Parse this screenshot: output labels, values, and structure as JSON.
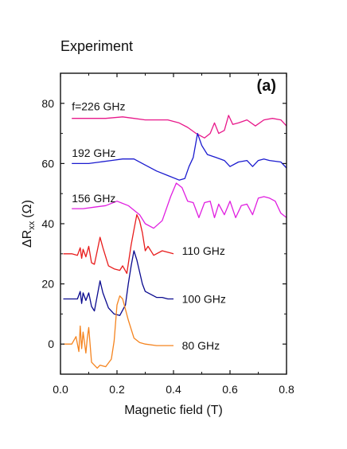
{
  "header": {
    "title": "Experiment"
  },
  "chart_data": {
    "type": "line",
    "panel_label": "(a)",
    "xlabel": "Magnetic field (T)",
    "ylabel_main": "ΔR",
    "ylabel_sub": "xx",
    "ylabel_unit": "(Ω)",
    "xlim": [
      0.0,
      0.8
    ],
    "ylim": [
      -10,
      90
    ],
    "xticks": [
      "0.0",
      "0.2",
      "0.4",
      "0.6",
      "0.8"
    ],
    "yticks": [
      "0",
      "20",
      "40",
      "60",
      "80"
    ],
    "grid": false,
    "legend": "none",
    "series": [
      {
        "name": "f=226 GHz",
        "color": "#e8188a",
        "x": [
          0.04,
          0.1,
          0.16,
          0.22,
          0.26,
          0.3,
          0.34,
          0.38,
          0.42,
          0.45,
          0.48,
          0.51,
          0.53,
          0.545,
          0.56,
          0.58,
          0.595,
          0.61,
          0.63,
          0.66,
          0.69,
          0.72,
          0.75,
          0.78,
          0.8
        ],
        "values": [
          75,
          75,
          75,
          75.5,
          75,
          74.5,
          74.5,
          74.5,
          73.5,
          72,
          70,
          68.5,
          70,
          73.5,
          70,
          71,
          76,
          73,
          73.5,
          74.5,
          72.5,
          74.5,
          75,
          74.5,
          72.5
        ]
      },
      {
        "name": "192 GHz",
        "color": "#1b1bcf",
        "x": [
          0.04,
          0.1,
          0.14,
          0.18,
          0.22,
          0.26,
          0.3,
          0.34,
          0.38,
          0.42,
          0.44,
          0.455,
          0.47,
          0.485,
          0.5,
          0.52,
          0.55,
          0.58,
          0.6,
          0.63,
          0.66,
          0.68,
          0.7,
          0.72,
          0.74,
          0.78,
          0.8
        ],
        "values": [
          60,
          60,
          60.5,
          61,
          61.5,
          61.5,
          59.5,
          57.5,
          56,
          54.5,
          55,
          59,
          62,
          70,
          66,
          63,
          62,
          61,
          59,
          60.5,
          61,
          59,
          61,
          61.5,
          61,
          60.5,
          58.5
        ]
      },
      {
        "name": "156 GHz",
        "color": "#e01ee0",
        "x": [
          0.04,
          0.08,
          0.12,
          0.16,
          0.2,
          0.24,
          0.28,
          0.3,
          0.33,
          0.36,
          0.39,
          0.41,
          0.43,
          0.45,
          0.47,
          0.49,
          0.51,
          0.53,
          0.545,
          0.56,
          0.58,
          0.6,
          0.62,
          0.64,
          0.66,
          0.68,
          0.7,
          0.72,
          0.74,
          0.76,
          0.78,
          0.8
        ],
        "values": [
          45,
          45,
          45.5,
          46,
          47.5,
          46,
          43,
          40,
          38.5,
          41,
          49,
          53.5,
          52,
          47.5,
          47,
          42,
          47,
          47.5,
          42,
          46.5,
          43,
          47.5,
          42,
          46,
          46.5,
          43,
          48.5,
          49,
          48.5,
          47.5,
          43.5,
          42
        ]
      },
      {
        "name": "110 GHz",
        "color": "#e81c1c",
        "x": [
          0.01,
          0.04,
          0.06,
          0.07,
          0.075,
          0.08,
          0.09,
          0.1,
          0.11,
          0.12,
          0.13,
          0.14,
          0.15,
          0.17,
          0.19,
          0.21,
          0.22,
          0.235,
          0.25,
          0.26,
          0.27,
          0.28,
          0.29,
          0.3,
          0.31,
          0.33,
          0.36,
          0.38,
          0.4
        ],
        "values": [
          30,
          30,
          29.5,
          32,
          28.5,
          31.5,
          29,
          32.5,
          27,
          26.5,
          31,
          35.5,
          32,
          26,
          25,
          24.5,
          26,
          23.5,
          33,
          38,
          43,
          41,
          37,
          31,
          32.5,
          29.5,
          31,
          30.5,
          30
        ]
      },
      {
        "name": "100 GHz",
        "color": "#0a0a8f",
        "x": [
          0.01,
          0.04,
          0.06,
          0.07,
          0.075,
          0.08,
          0.09,
          0.1,
          0.11,
          0.12,
          0.14,
          0.15,
          0.17,
          0.19,
          0.21,
          0.23,
          0.24,
          0.25,
          0.26,
          0.27,
          0.28,
          0.29,
          0.3,
          0.32,
          0.34,
          0.36,
          0.38,
          0.4
        ],
        "values": [
          15,
          15,
          15,
          17.5,
          13.5,
          17,
          14.5,
          17,
          12.5,
          11,
          21,
          17,
          12,
          10,
          9.5,
          13,
          20,
          26,
          31,
          28,
          24,
          20,
          17.5,
          16.5,
          15.5,
          15.5,
          15,
          15
        ]
      },
      {
        "name": "80 GHz",
        "color": "#f5841f",
        "x": [
          0.01,
          0.04,
          0.055,
          0.065,
          0.07,
          0.075,
          0.08,
          0.09,
          0.095,
          0.1,
          0.11,
          0.12,
          0.13,
          0.14,
          0.16,
          0.18,
          0.19,
          0.2,
          0.21,
          0.22,
          0.24,
          0.26,
          0.28,
          0.3,
          0.34,
          0.38,
          0.4
        ],
        "values": [
          0,
          0,
          2.5,
          -2.5,
          6,
          -1.5,
          4,
          -3,
          2,
          5.5,
          -6,
          -7,
          -8,
          -7,
          -7.5,
          -5,
          1,
          13,
          16,
          15,
          8,
          2,
          0.5,
          0,
          -0.5,
          -0.5,
          -0.5
        ]
      }
    ]
  }
}
